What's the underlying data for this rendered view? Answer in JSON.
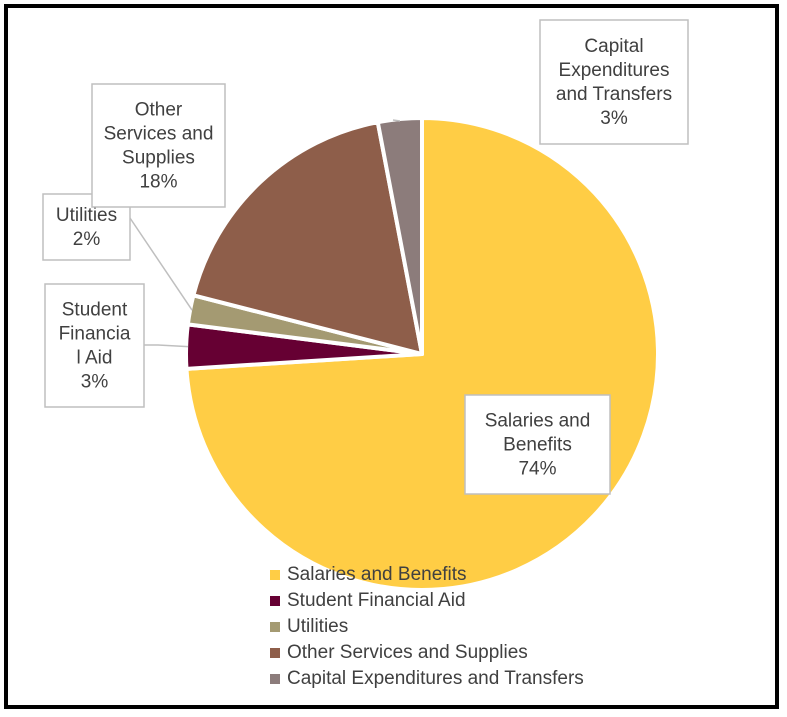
{
  "chart_data": {
    "type": "pie",
    "categories": [
      "Salaries and Benefits",
      "Student Financial Aid",
      "Utilities",
      "Other Services and Supplies",
      "Capital Expenditures and Transfers"
    ],
    "values": [
      74,
      3,
      2,
      18,
      3
    ],
    "colors": [
      "#FFCD45",
      "#660033",
      "#A49A72",
      "#8E5E4A",
      "#8C7C7B"
    ],
    "data_labels": [
      [
        "Salaries and",
        "Benefits",
        "74%"
      ],
      [
        "Student",
        "Financia",
        "l Aid",
        "3%"
      ],
      [
        "Utilities",
        "2%"
      ],
      [
        "Other",
        "Services and",
        "Supplies",
        "18%"
      ],
      [
        "Capital",
        "Expenditures",
        "and Transfers",
        "3%"
      ]
    ],
    "legend_position": "bottom",
    "title": ""
  }
}
